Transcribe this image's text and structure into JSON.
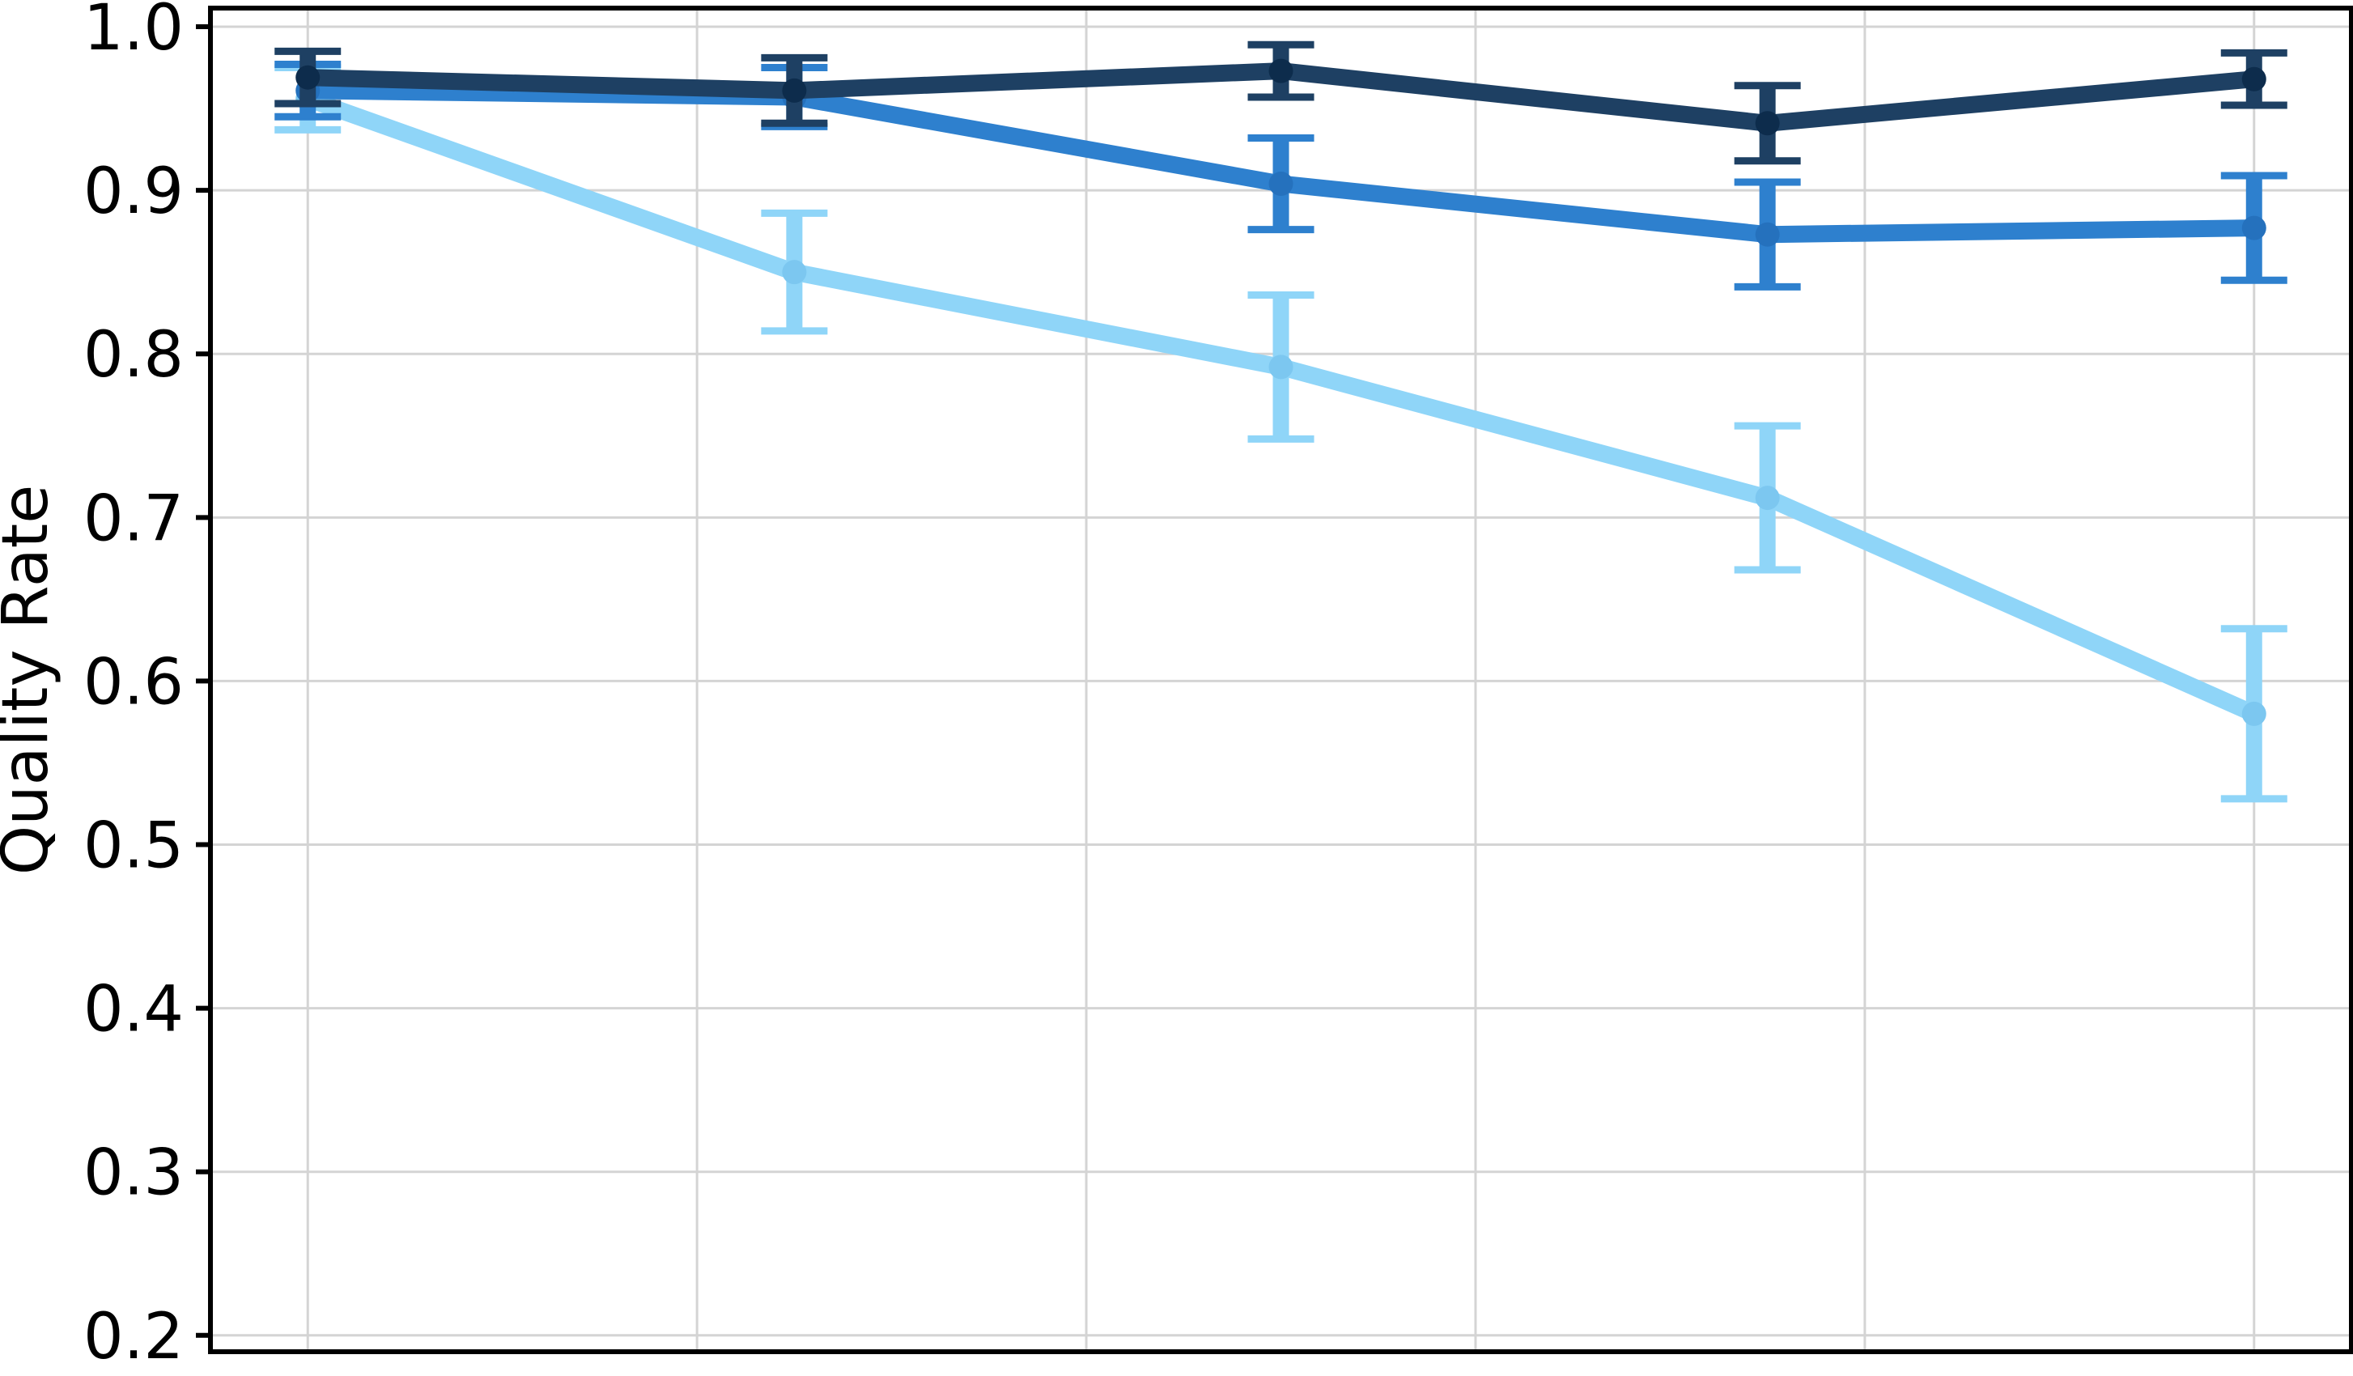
{
  "chart_data": {
    "type": "line",
    "title": "",
    "xlabel": "",
    "ylabel": "Quality Rate",
    "grid": true,
    "legend_position": "none",
    "x": [
      0,
      25,
      50,
      75,
      100
    ],
    "xlim": [
      -5,
      105
    ],
    "ylim": [
      0.19,
      1.0114
    ],
    "xticks": [
      0,
      20,
      40,
      60,
      80,
      100
    ],
    "x_tick_labels": [
      "",
      "",
      "",
      "",
      "",
      ""
    ],
    "yticks": [
      1.0,
      0.9,
      0.8,
      0.7,
      0.6,
      0.5,
      0.4,
      0.3,
      0.2
    ],
    "y_tick_labels": [
      "1.0",
      "0.9",
      "0.8",
      "0.7",
      "0.6",
      "0.5",
      "0.4",
      "0.3",
      "0.2"
    ],
    "series": [
      {
        "name": "light-blue-line",
        "color": "#8fd5f8",
        "marker_color": "#7cc7f0",
        "values": [
          0.956,
          0.85,
          0.792,
          0.712,
          0.58
        ],
        "errors": [
          0.019,
          0.036,
          0.044,
          0.044,
          0.052
        ]
      },
      {
        "name": "medium-blue-line",
        "color": "#2e80ce",
        "marker_color": "#2571bd",
        "values": [
          0.961,
          0.957,
          0.904,
          0.873,
          0.877
        ],
        "errors": [
          0.016,
          0.018,
          0.028,
          0.032,
          0.032
        ]
      },
      {
        "name": "dark-navy-line",
        "color": "#1e4063",
        "marker_color": "#0d2c4c",
        "values": [
          0.969,
          0.961,
          0.973,
          0.941,
          0.968
        ],
        "errors": [
          0.016,
          0.02,
          0.016,
          0.023,
          0.016
        ]
      }
    ],
    "colors": {
      "grid": "#d4d4d4",
      "spine": "#000000",
      "tick_label": "#000000"
    }
  }
}
